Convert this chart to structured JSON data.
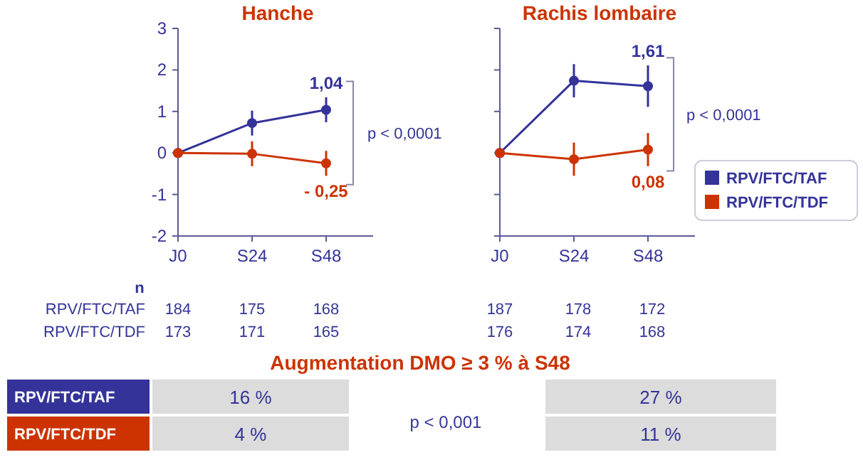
{
  "chart_data": [
    {
      "type": "line",
      "title": "Hanche",
      "categories": [
        "J0",
        "S24",
        "S48"
      ],
      "ylim": [
        -2,
        3
      ],
      "yticks": [
        -2,
        -1,
        0,
        1,
        2,
        3
      ],
      "marker": "circle",
      "annotations": [
        "p < 0,0001"
      ],
      "series": [
        {
          "color": "#333399",
          "values": [
            0,
            0.72,
            1.04
          ],
          "errors": [
            null,
            0.3,
            0.3
          ],
          "value_labels": [
            null,
            null,
            "1,04"
          ]
        },
        {
          "color": "#cc3300",
          "values": [
            0,
            -0.02,
            -0.25
          ],
          "errors": [
            null,
            0.3,
            0.3
          ],
          "value_labels": [
            null,
            null,
            "- 0,25"
          ]
        }
      ]
    },
    {
      "type": "line",
      "title": "Rachis lombaire",
      "categories": [
        "J0",
        "S24",
        "S48"
      ],
      "ylim": [
        -2,
        3
      ],
      "yticks": [
        -2,
        -1,
        0,
        1,
        2,
        3
      ],
      "tick_labels": "x",
      "marker": "circle",
      "legend": "right",
      "annotations": [
        "p < 0,0001"
      ],
      "series": [
        {
          "name": "RPV/FTC/TAF",
          "color": "#333399",
          "values": [
            0,
            1.74,
            1.61
          ],
          "errors": [
            null,
            0.4,
            0.5
          ],
          "value_labels": [
            null,
            null,
            "1,61"
          ]
        },
        {
          "name": "RPV/FTC/TDF",
          "color": "#cc3300",
          "values": [
            0,
            -0.15,
            0.08
          ],
          "errors": [
            null,
            0.4,
            0.4
          ],
          "value_labels": [
            null,
            null,
            "0,08"
          ]
        }
      ]
    },
    {
      "type": "other",
      "title": "n",
      "categories": [
        "RPV/FTC/TAF",
        "RPV/FTC/TDF"
      ],
      "annotations": [
        "184",
        "175",
        "168",
        "187",
        "178",
        "172",
        "173",
        "171",
        "165",
        "176",
        "174",
        "168"
      ]
    },
    {
      "type": "other",
      "title": "Augmentation DMO ≥ 3 % à S48",
      "categories": [
        "RPV/FTC/TAF",
        "RPV/FTC/TDF"
      ],
      "colors": [
        "#333399",
        "#cc3300"
      ],
      "annotations": [
        "16 %",
        "4 %",
        "p < 0,001",
        "27 %",
        "11 %"
      ]
    }
  ]
}
